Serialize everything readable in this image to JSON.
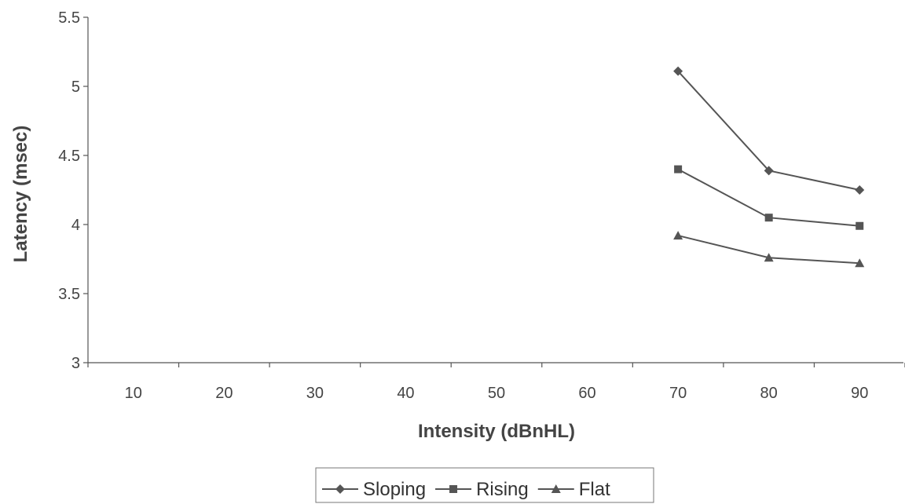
{
  "chart_data": {
    "type": "line",
    "title": "",
    "xlabel": "Intensity (dBnHL)",
    "ylabel": "Latency (msec)",
    "categories": [
      "10",
      "20",
      "30",
      "40",
      "50",
      "60",
      "70",
      "80",
      "90"
    ],
    "y_ticks": [
      "3",
      "3.5",
      "4",
      "4.5",
      "5",
      "5.5"
    ],
    "ylim": [
      3,
      5.5
    ],
    "grid": false,
    "legend_position": "bottom",
    "series": [
      {
        "name": "Sloping",
        "marker": "diamond",
        "values": [
          null,
          null,
          null,
          null,
          null,
          null,
          5.11,
          4.39,
          4.25
        ]
      },
      {
        "name": "Rising",
        "marker": "square",
        "values": [
          null,
          null,
          null,
          null,
          null,
          null,
          4.4,
          4.05,
          3.99
        ]
      },
      {
        "name": "Flat",
        "marker": "triangle",
        "values": [
          null,
          null,
          null,
          null,
          null,
          null,
          3.92,
          3.76,
          3.72
        ]
      }
    ],
    "colors": {
      "line": "#555555",
      "axis": "#555555",
      "text": "#444444"
    }
  }
}
